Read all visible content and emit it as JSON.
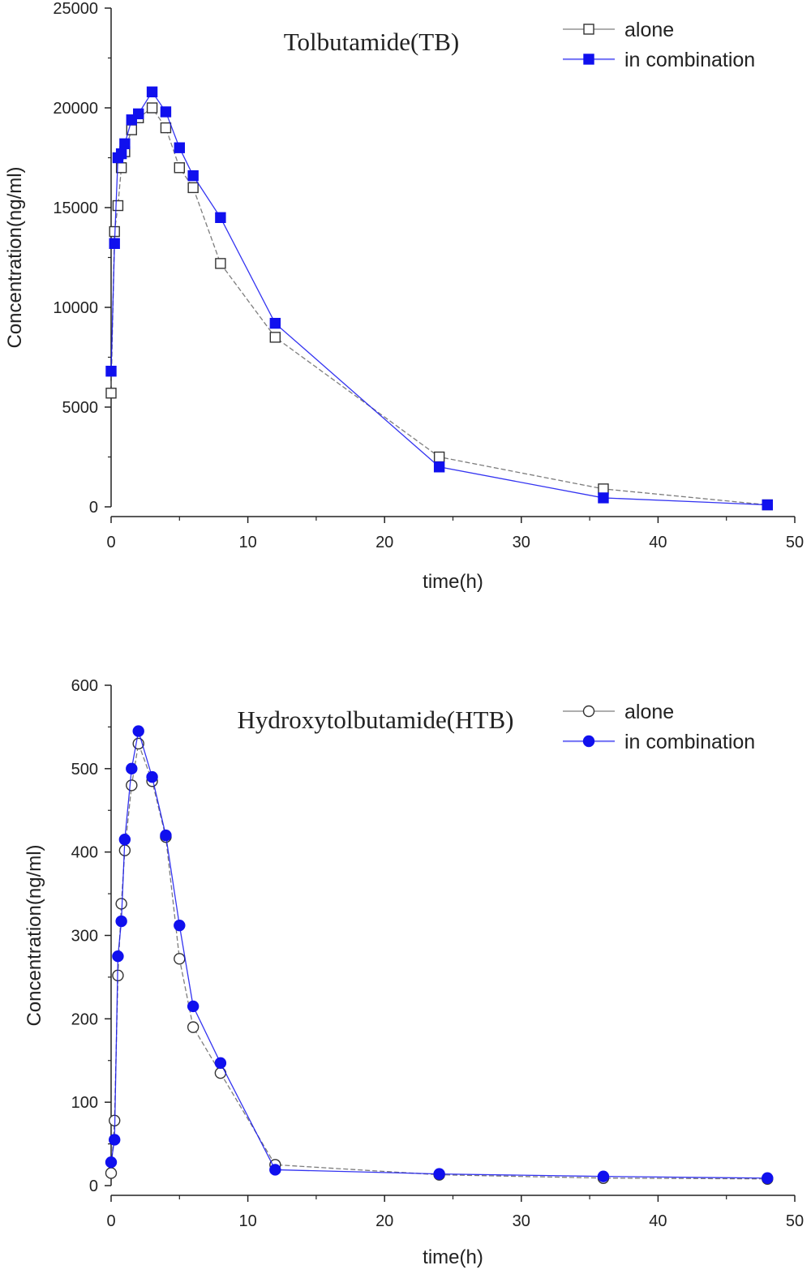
{
  "chart_data": [
    {
      "type": "line",
      "title": "Tolbutamide(TB)",
      "xlabel": "time(h)",
      "ylabel": "Concentration(ng/ml)",
      "xlim": [
        0,
        50
      ],
      "ylim": [
        0,
        25000
      ],
      "x_ticks": [
        "0",
        "10",
        "20",
        "30",
        "40",
        "50"
      ],
      "y_ticks": [
        "0",
        "5000",
        "10000",
        "15000",
        "20000",
        "25000"
      ],
      "legend_position": "top-right",
      "grid": false,
      "series": [
        {
          "name": "alone",
          "marker": "open-square",
          "color": "#666666",
          "points": [
            [
              0,
              5700
            ],
            [
              0.25,
              13800
            ],
            [
              0.5,
              15100
            ],
            [
              0.75,
              17000
            ],
            [
              1,
              17800
            ],
            [
              1.5,
              18900
            ],
            [
              2,
              19500
            ],
            [
              3,
              20000
            ],
            [
              4,
              19000
            ],
            [
              5,
              17000
            ],
            [
              6,
              16000
            ],
            [
              8,
              12200
            ],
            [
              12,
              8500
            ],
            [
              24,
              2500
            ],
            [
              36,
              900
            ],
            [
              48,
              100
            ]
          ]
        },
        {
          "name": "in combination",
          "marker": "filled-square",
          "color": "#1010ee",
          "points": [
            [
              0,
              6800
            ],
            [
              0.25,
              13200
            ],
            [
              0.5,
              17500
            ],
            [
              0.75,
              17700
            ],
            [
              1,
              18200
            ],
            [
              1.5,
              19400
            ],
            [
              2,
              19700
            ],
            [
              3,
              20800
            ],
            [
              4,
              19800
            ],
            [
              5,
              18000
            ],
            [
              6,
              16600
            ],
            [
              8,
              14500
            ],
            [
              12,
              9200
            ],
            [
              24,
              2000
            ],
            [
              36,
              450
            ],
            [
              48,
              100
            ]
          ]
        }
      ]
    },
    {
      "type": "line",
      "title": "Hydroxytolbutamide(HTB)",
      "xlabel": "time(h)",
      "ylabel": "Concentration(ng/ml)",
      "xlim": [
        0,
        50
      ],
      "ylim": [
        0,
        600
      ],
      "x_ticks": [
        "0",
        "10",
        "20",
        "30",
        "40",
        "50"
      ],
      "y_ticks": [
        "0",
        "100",
        "200",
        "300",
        "400",
        "500",
        "600"
      ],
      "legend_position": "top-right",
      "grid": false,
      "series": [
        {
          "name": "alone",
          "marker": "open-circle",
          "color": "#666666",
          "points": [
            [
              0,
              15
            ],
            [
              0.25,
              78
            ],
            [
              0.5,
              252
            ],
            [
              0.75,
              338
            ],
            [
              1,
              402
            ],
            [
              1.5,
              480
            ],
            [
              2,
              530
            ],
            [
              3,
              485
            ],
            [
              4,
              418
            ],
            [
              5,
              272
            ],
            [
              6,
              190
            ],
            [
              8,
              135
            ],
            [
              12,
              25
            ],
            [
              24,
              13
            ],
            [
              36,
              9
            ],
            [
              48,
              8
            ]
          ]
        },
        {
          "name": "in combination",
          "marker": "filled-circle",
          "color": "#1010ee",
          "points": [
            [
              0,
              28
            ],
            [
              0.25,
              55
            ],
            [
              0.5,
              275
            ],
            [
              0.75,
              317
            ],
            [
              1,
              415
            ],
            [
              1.5,
              500
            ],
            [
              2,
              545
            ],
            [
              3,
              490
            ],
            [
              4,
              420
            ],
            [
              5,
              312
            ],
            [
              6,
              215
            ],
            [
              8,
              147
            ],
            [
              12,
              19
            ],
            [
              24,
              14
            ],
            [
              36,
              11
            ],
            [
              48,
              9
            ]
          ]
        }
      ]
    }
  ]
}
